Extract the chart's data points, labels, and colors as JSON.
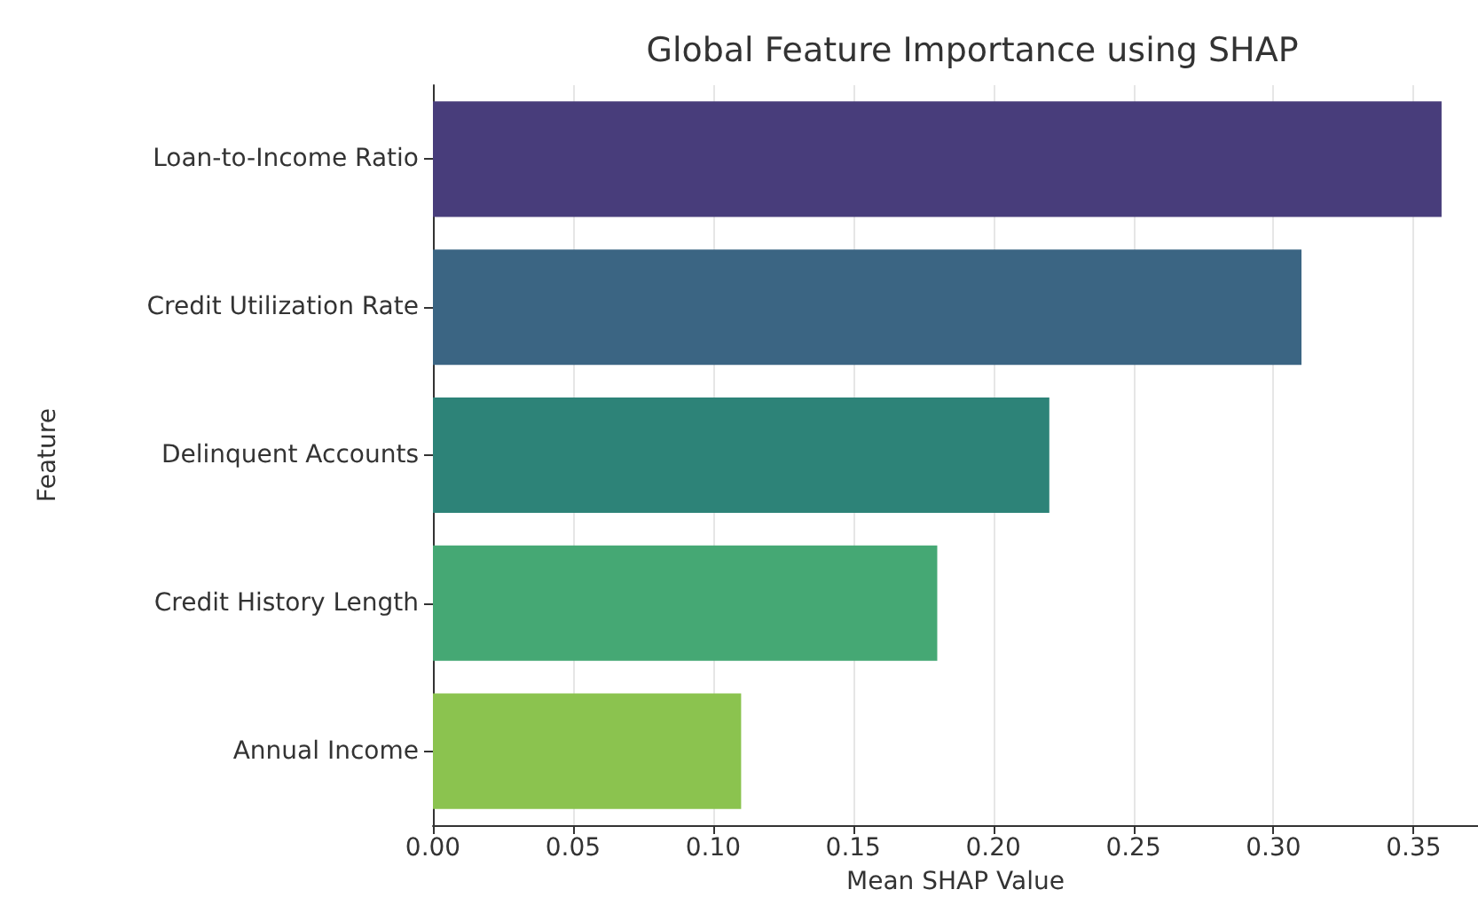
{
  "chart_data": {
    "type": "bar",
    "orientation": "horizontal",
    "title": "Global Feature Importance using SHAP",
    "xlabel": "Mean SHAP Value",
    "ylabel": "Feature",
    "categories": [
      "Loan-to-Income Ratio",
      "Credit Utilization Rate",
      "Delinquent Accounts",
      "Credit History Length",
      "Annual Income"
    ],
    "values": [
      0.36,
      0.31,
      0.22,
      0.18,
      0.11
    ],
    "colors": [
      "#483d7b",
      "#3b6583",
      "#2d8378",
      "#45a874",
      "#8bc34f"
    ],
    "xlim": [
      0,
      0.373
    ],
    "xticks": [
      {
        "value": 0,
        "label": "0.00"
      },
      {
        "value": 0.05,
        "label": "0.05"
      },
      {
        "value": 0.1,
        "label": "0.10"
      },
      {
        "value": 0.15,
        "label": "0.15"
      },
      {
        "value": 0.2,
        "label": "0.20"
      },
      {
        "value": 0.25,
        "label": "0.25"
      },
      {
        "value": 0.3,
        "label": "0.30"
      },
      {
        "value": 0.35,
        "label": "0.35"
      }
    ],
    "grid": "x"
  }
}
